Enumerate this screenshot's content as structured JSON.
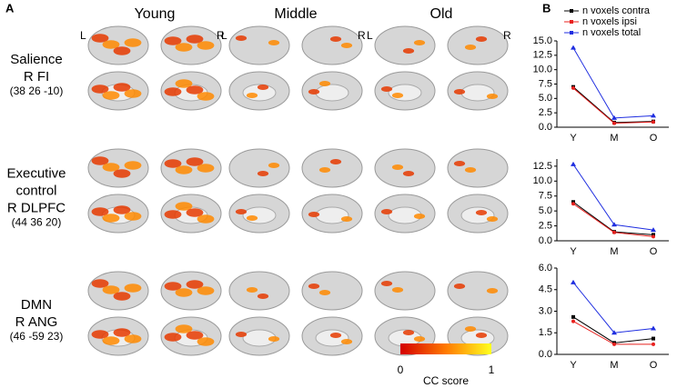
{
  "panel_a": {
    "label": "A",
    "columns": [
      "Young",
      "Middle",
      "Old"
    ],
    "hemis": [
      "L",
      "R"
    ],
    "rows": [
      [
        "Salience",
        "R FI",
        "(38 26 -10)"
      ],
      [
        "Executive",
        "control",
        "R DLPFC",
        "(44 36 20)"
      ],
      [
        "DMN",
        "R ANG",
        "(46 -59 23)"
      ]
    ],
    "colorbar": {
      "min": "0",
      "max": "1",
      "label": "CC score"
    }
  },
  "panel_b": {
    "label": "B"
  },
  "chart_data": [
    {
      "type": "line",
      "categories": [
        "Y",
        "M",
        "O"
      ],
      "ylim": [
        0,
        15
      ],
      "yticks": [
        {
          "value": 0,
          "label": "0.0"
        },
        {
          "value": 2.5,
          "label": "2.5"
        },
        {
          "value": 5,
          "label": "5.0"
        },
        {
          "value": 7.5,
          "label": "7.5"
        },
        {
          "value": 10,
          "label": "10.0"
        },
        {
          "value": 12.5,
          "label": "12.5"
        },
        {
          "value": 15,
          "label": "15.0"
        }
      ],
      "series": [
        {
          "name": "n voxels contra",
          "color": "#000000",
          "marker": "square",
          "values": [
            7.0,
            0.8,
            1.0
          ]
        },
        {
          "name": "n voxels ipsi",
          "color": "#e8201e",
          "marker": "circle",
          "values": [
            6.8,
            0.7,
            0.9
          ]
        },
        {
          "name": "n voxels total",
          "color": "#1f2ee0",
          "marker": "triangle",
          "values": [
            13.8,
            1.6,
            2.0
          ]
        }
      ]
    },
    {
      "type": "line",
      "categories": [
        "Y",
        "M",
        "O"
      ],
      "ylim": [
        0,
        13.7
      ],
      "yticks": [
        {
          "value": 0,
          "label": "0.0"
        },
        {
          "value": 2.5,
          "label": "2.5"
        },
        {
          "value": 5,
          "label": "5.0"
        },
        {
          "value": 7.5,
          "label": "7.5"
        },
        {
          "value": 10,
          "label": "10.0"
        },
        {
          "value": 12.5,
          "label": "12.5"
        }
      ],
      "series": [
        {
          "color": "#000000",
          "marker": "square",
          "values": [
            6.5,
            1.5,
            1.0
          ]
        },
        {
          "color": "#e8201e",
          "marker": "circle",
          "values": [
            6.2,
            1.4,
            0.7
          ]
        },
        {
          "color": "#1f2ee0",
          "marker": "triangle",
          "values": [
            12.8,
            2.7,
            1.8
          ]
        }
      ]
    },
    {
      "type": "line",
      "categories": [
        "Y",
        "M",
        "O"
      ],
      "ylim": [
        0,
        6
      ],
      "yticks": [
        {
          "value": 0,
          "label": "0.0"
        },
        {
          "value": 1.5,
          "label": "1.5"
        },
        {
          "value": 3,
          "label": "3.0"
        },
        {
          "value": 4.5,
          "label": "4.5"
        },
        {
          "value": 6,
          "label": "6.0"
        }
      ],
      "series": [
        {
          "color": "#000000",
          "marker": "square",
          "values": [
            2.6,
            0.8,
            1.1
          ]
        },
        {
          "color": "#e8201e",
          "marker": "circle",
          "values": [
            2.3,
            0.7,
            0.7
          ]
        },
        {
          "color": "#1f2ee0",
          "marker": "triangle",
          "values": [
            5.0,
            1.5,
            1.8
          ]
        }
      ]
    }
  ]
}
